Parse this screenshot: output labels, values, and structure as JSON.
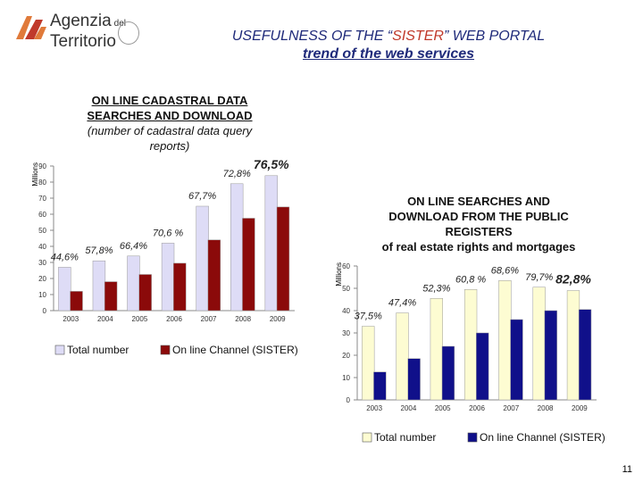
{
  "header": {
    "logo": [
      "Agenzia",
      "del",
      "Territorio"
    ],
    "title_parts": [
      "USEFULNESS OF THE “",
      "SISTER",
      "” WEB PORTAL"
    ],
    "subtitle": "trend of the web services"
  },
  "page_number": "11",
  "chart_data": [
    {
      "type": "bar",
      "title": "ON LINE CADASTRAL DATA SEARCHES AND DOWNLOAD",
      "subtitle": "(number of cadastral data query reports)",
      "y_label": "Millions",
      "categories": [
        "2003",
        "2004",
        "2005",
        "2006",
        "2007",
        "2008",
        "2009"
      ],
      "series": [
        {
          "name": "Total number",
          "color": "#dedcf6",
          "values": [
            27,
            31,
            34,
            42,
            65,
            79,
            84
          ]
        },
        {
          "name": "On line Channel (SISTER)",
          "color": "#8b0a0a",
          "values": [
            12,
            18,
            22.5,
            29.5,
            44,
            57.5,
            64.5
          ]
        }
      ],
      "annotations": [
        "44,6%",
        "57,8%",
        "66,4%",
        "70,6 %",
        "67,7%",
        "72,8%",
        "76,5%"
      ],
      "ylim": [
        0,
        90
      ],
      "yticks": [
        0,
        10,
        20,
        30,
        40,
        50,
        60,
        70,
        80,
        90
      ],
      "grid": false
    },
    {
      "type": "bar",
      "title": "ON LINE SEARCHES AND DOWNLOAD FROM THE PUBLIC REGISTERS",
      "subtitle": "of real estate rights and mortgages",
      "y_label": "Millions",
      "categories": [
        "2003",
        "2004",
        "2005",
        "2006",
        "2007",
        "2008",
        "2009"
      ],
      "series": [
        {
          "name": "Total number",
          "color": "#fdfcd2",
          "values": [
            33,
            39,
            45.5,
            49.5,
            53.5,
            50.5,
            49
          ]
        },
        {
          "name": "On line Channel (SISTER)",
          "color": "#10108a",
          "values": [
            12.5,
            18.5,
            24,
            30,
            36,
            40,
            40.5
          ]
        }
      ],
      "annotations": [
        "37,5%",
        "47,4%",
        "52,3%",
        "60,8 %",
        "68,6%",
        "79,7%",
        "82,8%"
      ],
      "ylim": [
        0,
        60
      ],
      "yticks": [
        0,
        10,
        20,
        30,
        40,
        50,
        60
      ],
      "grid": false
    }
  ]
}
